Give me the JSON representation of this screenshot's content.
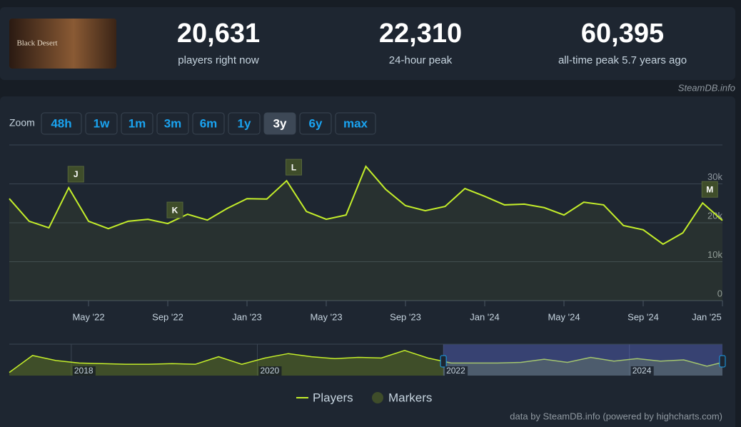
{
  "header": {
    "game": "Black Desert",
    "stats": [
      {
        "value": "20,631",
        "label": "players right now"
      },
      {
        "value": "22,310",
        "label": "24-hour peak"
      },
      {
        "value": "60,395",
        "label": "all-time peak 5.7 years ago"
      }
    ],
    "source": "SteamDB.info"
  },
  "zoom": {
    "label": "Zoom",
    "options": [
      "48h",
      "1w",
      "1m",
      "3m",
      "6m",
      "1y",
      "3y",
      "6y",
      "max"
    ],
    "active": 6
  },
  "chart_data": {
    "type": "line",
    "x": [
      "2022-01",
      "2022-02",
      "2022-03",
      "2022-04",
      "2022-05",
      "2022-06",
      "2022-07",
      "2022-08",
      "2022-09",
      "2022-10",
      "2022-11",
      "2022-12",
      "2023-01",
      "2023-02",
      "2023-03",
      "2023-04",
      "2023-05",
      "2023-06",
      "2023-07",
      "2023-08",
      "2023-09",
      "2023-10",
      "2023-11",
      "2023-12",
      "2024-01",
      "2024-02",
      "2024-03",
      "2024-04",
      "2024-05",
      "2024-06",
      "2024-07",
      "2024-08",
      "2024-09",
      "2024-10",
      "2024-11",
      "2024-12",
      "2025-01"
    ],
    "series": [
      {
        "name": "Players",
        "color": "#c4ee2a",
        "values": [
          26200,
          20400,
          18700,
          29000,
          20400,
          18500,
          20400,
          20900,
          19800,
          22200,
          20700,
          23700,
          26200,
          26100,
          30800,
          22900,
          20900,
          22000,
          34500,
          28600,
          24400,
          23100,
          24200,
          28800,
          26800,
          24600,
          24800,
          23900,
          22000,
          25300,
          24600,
          19300,
          18200,
          14500,
          17400,
          25100,
          20600
        ]
      }
    ],
    "markers": {
      "name": "Markers",
      "color": "#3f4d2a",
      "items": [
        {
          "label": "J",
          "x": "2022-04"
        },
        {
          "label": "K",
          "x": "2022-09"
        },
        {
          "label": "L",
          "x": "2023-03"
        },
        {
          "label": "M",
          "x": "2024-12"
        }
      ]
    },
    "xlim": [
      "2022-01",
      "2025-01"
    ],
    "xticks": [
      {
        "value": "2022-05",
        "label": "May '22"
      },
      {
        "value": "2022-09",
        "label": "Sep '22"
      },
      {
        "value": "2023-01",
        "label": "Jan '23"
      },
      {
        "value": "2023-05",
        "label": "May '23"
      },
      {
        "value": "2023-09",
        "label": "Sep '23"
      },
      {
        "value": "2024-01",
        "label": "Jan '24"
      },
      {
        "value": "2024-05",
        "label": "May '24"
      },
      {
        "value": "2024-09",
        "label": "Sep '24"
      },
      {
        "value": "2025-01",
        "label": "Jan '25"
      }
    ],
    "ylim": [
      0,
      40000
    ],
    "yticks": [
      0,
      {
        "value": 10000,
        "label": "10k"
      },
      {
        "value": 20000,
        "label": "20k"
      },
      {
        "value": 30000,
        "label": "30k"
      }
    ],
    "grid": true,
    "navigator": {
      "x": [
        "2017-05",
        "2017-08",
        "2017-11",
        "2018-02",
        "2018-05",
        "2018-08",
        "2018-11",
        "2019-02",
        "2019-05",
        "2019-08",
        "2019-11",
        "2020-02",
        "2020-05",
        "2020-08",
        "2020-11",
        "2021-02",
        "2021-05",
        "2021-08",
        "2021-11",
        "2022-02",
        "2022-05",
        "2022-08",
        "2022-11",
        "2023-02",
        "2023-05",
        "2023-08",
        "2023-11",
        "2024-02",
        "2024-05",
        "2024-08",
        "2024-11",
        "2025-01"
      ],
      "values": [
        5000,
        32000,
        24000,
        20000,
        19000,
        18000,
        18000,
        19000,
        18000,
        30000,
        18000,
        28000,
        35000,
        30000,
        27000,
        29000,
        28000,
        40000,
        28000,
        20000,
        20000,
        20000,
        21000,
        26000,
        21000,
        29000,
        23000,
        27000,
        23000,
        25000,
        15000,
        21000
      ],
      "xlim": [
        "2017-05",
        "2025-01"
      ],
      "ylim": [
        0,
        50000
      ],
      "xticks": [
        {
          "value": "2018-01",
          "label": "2018"
        },
        {
          "value": "2020-01",
          "label": "2020"
        },
        {
          "value": "2022-01",
          "label": "2022"
        },
        {
          "value": "2024-01",
          "label": "2024"
        }
      ]
    },
    "credits": "data by SteamDB.info (powered by highcharts.com)"
  }
}
